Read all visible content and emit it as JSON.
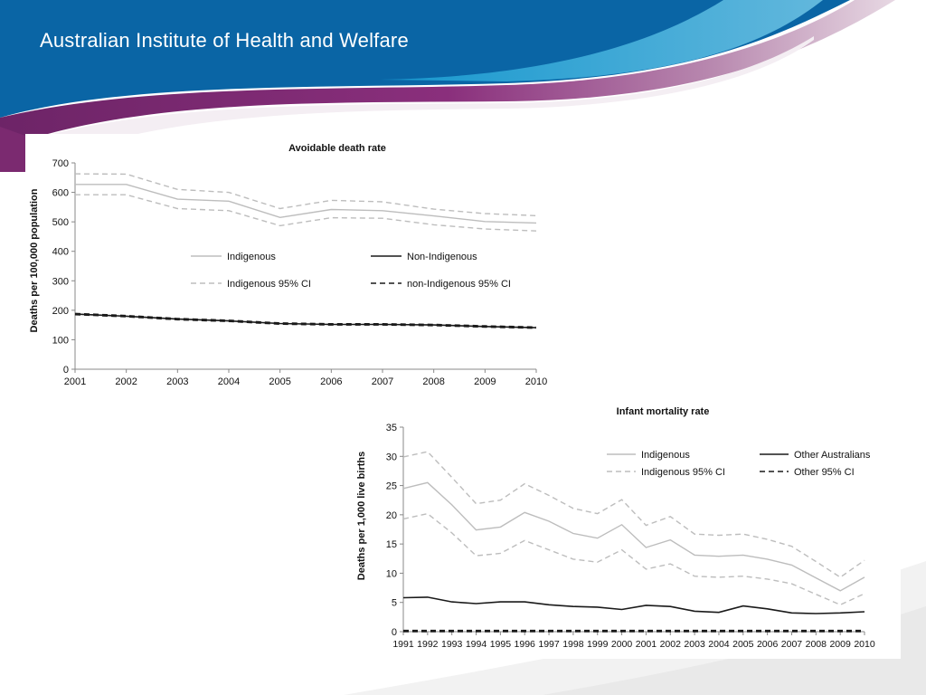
{
  "header": {
    "org_name": "Australian Institute of Health and Welfare"
  },
  "colors": {
    "banner_blue": "#0a6fae",
    "banner_cyan": "#16b4e6",
    "banner_purple": "#7b2a70",
    "indigenous_line": "#bdbdbd",
    "other_line": "#1a1a1a"
  },
  "chart_data": [
    {
      "type": "line",
      "title": "Avoidable death rate",
      "xlabel": "",
      "ylabel": "Deaths per 100,000 population",
      "x": [
        "2001",
        "2002",
        "2003",
        "2004",
        "2005",
        "2006",
        "2007",
        "2008",
        "2009",
        "2010"
      ],
      "ylim": [
        0,
        700
      ],
      "yticks": [
        0,
        100,
        200,
        300,
        400,
        500,
        600,
        700
      ],
      "grid": false,
      "legend_placement": "center",
      "series": [
        {
          "name": "Indigenous",
          "style": "solid",
          "color": "#bdbdbd",
          "values": [
            627,
            627,
            577,
            570,
            515,
            542,
            538,
            520,
            501,
            496
          ]
        },
        {
          "name": "Non-Indigenous",
          "style": "solid",
          "color": "#1a1a1a",
          "values": [
            187,
            180,
            170,
            164,
            155,
            152,
            152,
            150,
            145,
            141
          ]
        },
        {
          "name": "Indigenous 95% CI",
          "style": "dashed",
          "color": "#bdbdbd",
          "values": [
            663,
            662,
            610,
            600,
            545,
            573,
            568,
            543,
            528,
            521
          ]
        },
        {
          "name": "Indigenous 95% CI",
          "style": "dashed",
          "color": "#bdbdbd",
          "legend": false,
          "values": [
            592,
            592,
            545,
            538,
            487,
            514,
            512,
            490,
            476,
            469
          ]
        },
        {
          "name": "non-Indigenous 95% CI",
          "style": "dashed",
          "color": "#1a1a1a",
          "values": [
            189,
            182,
            172,
            166,
            157,
            154,
            154,
            152,
            147,
            143
          ]
        },
        {
          "name": "non-Indigenous 95% CI",
          "style": "dashed",
          "color": "#1a1a1a",
          "legend": false,
          "values": [
            185,
            178,
            168,
            162,
            153,
            150,
            150,
            148,
            143,
            139
          ]
        }
      ]
    },
    {
      "type": "line",
      "title": "Infant mortality rate",
      "xlabel": "",
      "ylabel": "Deaths per 1,000 live births",
      "x": [
        "1991",
        "1992",
        "1993",
        "1994",
        "1995",
        "1996",
        "1997",
        "1998",
        "1999",
        "2000",
        "2001",
        "2002",
        "2003",
        "2004",
        "2005",
        "2006",
        "2007",
        "2008",
        "2009",
        "2010"
      ],
      "ylim": [
        0,
        35
      ],
      "yticks": [
        0,
        5,
        10,
        15,
        20,
        25,
        30,
        35
      ],
      "grid": false,
      "legend_placement": "top-right",
      "series": [
        {
          "name": "Indigenous",
          "style": "solid",
          "color": "#bdbdbd",
          "values": [
            24.5,
            25.5,
            21.7,
            17.4,
            17.9,
            20.4,
            18.9,
            16.8,
            16.0,
            18.3,
            14.4,
            15.7,
            13.1,
            12.9,
            13.1,
            12.4,
            11.4,
            9.2,
            7.0,
            9.3
          ]
        },
        {
          "name": "Indigenous 95% CI",
          "style": "dashed",
          "color": "#bdbdbd",
          "values": [
            29.9,
            30.8,
            26.4,
            21.9,
            22.5,
            25.3,
            23.3,
            21.1,
            20.2,
            22.6,
            18.2,
            19.7,
            16.7,
            16.5,
            16.7,
            15.8,
            14.6,
            12.0,
            9.3,
            12.2
          ]
        },
        {
          "name": "Indigenous 95% CI",
          "style": "dashed",
          "color": "#bdbdbd",
          "legend": false,
          "values": [
            19.3,
            20.2,
            16.9,
            13.0,
            13.4,
            15.6,
            14.0,
            12.4,
            11.9,
            14.0,
            10.7,
            11.6,
            9.5,
            9.3,
            9.5,
            9.0,
            8.2,
            6.4,
            4.6,
            6.5
          ]
        },
        {
          "name": "Other Australians",
          "style": "solid",
          "color": "#1a1a1a",
          "values": [
            5.8,
            5.9,
            5.1,
            4.8,
            5.1,
            5.1,
            4.6,
            4.3,
            4.2,
            3.8,
            4.5,
            4.3,
            3.5,
            3.3,
            4.4,
            3.9,
            3.2,
            3.1,
            3.2,
            3.4
          ]
        },
        {
          "name": "Other 95% CI",
          "style": "dashed",
          "color": "#1a1a1a",
          "values": [
            0.2,
            0.2,
            0.2,
            0.2,
            0.2,
            0.2,
            0.2,
            0.2,
            0.2,
            0.2,
            0.2,
            0.2,
            0.2,
            0.2,
            0.2,
            0.2,
            0.2,
            0.2,
            0.2,
            0.2
          ]
        },
        {
          "name": "Other 95% CI",
          "style": "dashed",
          "color": "#1a1a1a",
          "legend": false,
          "values": [
            0.0,
            0.0,
            0.0,
            0.0,
            0.0,
            0.0,
            0.0,
            0.0,
            0.0,
            0.0,
            0.0,
            0.0,
            0.0,
            0.0,
            0.0,
            0.0,
            0.0,
            0.0,
            0.0,
            0.0
          ]
        }
      ]
    }
  ]
}
